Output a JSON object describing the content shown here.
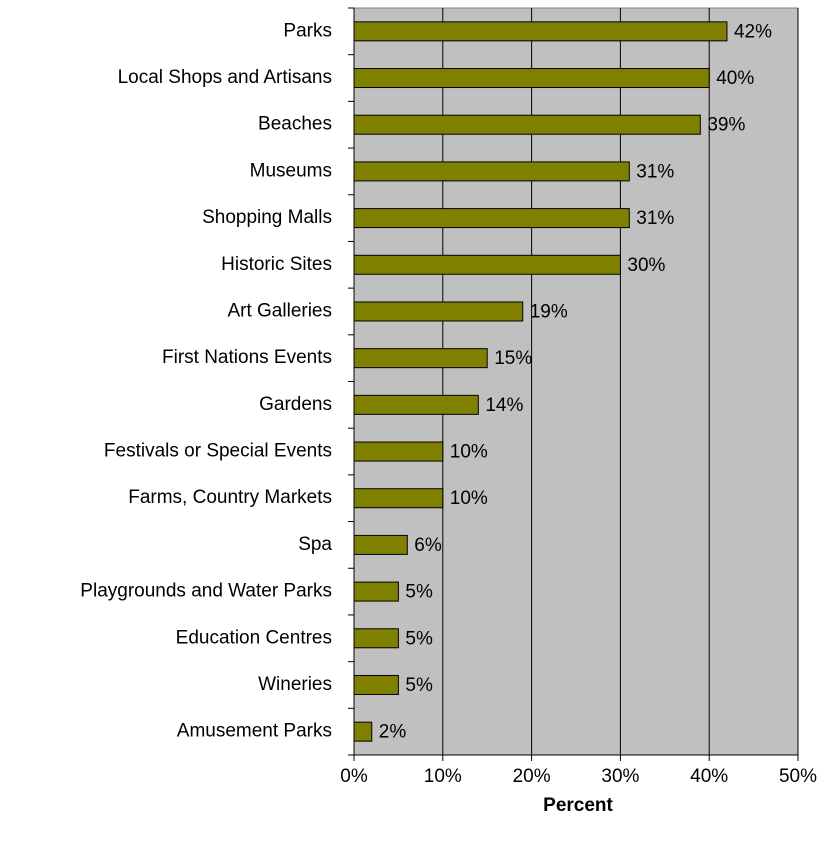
{
  "chart_data": {
    "type": "bar",
    "orientation": "horizontal",
    "x_label": "Percent",
    "categories": [
      "Parks",
      "Local Shops and Artisans",
      "Beaches",
      "Museums",
      "Shopping Malls",
      "Historic Sites",
      "Art Galleries",
      "First Nations Events",
      "Gardens",
      "Festivals or Special Events",
      "Farms, Country Markets",
      "Spa",
      "Playgrounds and Water Parks",
      "Education Centres",
      "Wineries",
      "Amusement Parks"
    ],
    "values": [
      42,
      40,
      39,
      31,
      31,
      30,
      19,
      15,
      14,
      10,
      10,
      6,
      5,
      5,
      5,
      2
    ],
    "value_labels": [
      "42%",
      "40%",
      "39%",
      "31%",
      "31%",
      "30%",
      "19%",
      "15%",
      "14%",
      "10%",
      "10%",
      "6%",
      "5%",
      "5%",
      "5%",
      "2%"
    ],
    "color": "#808000",
    "xlim": [
      0,
      50
    ],
    "xticks": [
      {
        "value": 0,
        "label": "0%"
      },
      {
        "value": 10,
        "label": "10%"
      },
      {
        "value": 20,
        "label": "20%"
      },
      {
        "value": 30,
        "label": "30%"
      },
      {
        "value": 40,
        "label": "40%"
      },
      {
        "value": 50,
        "label": "50%"
      }
    ],
    "grid": true
  }
}
